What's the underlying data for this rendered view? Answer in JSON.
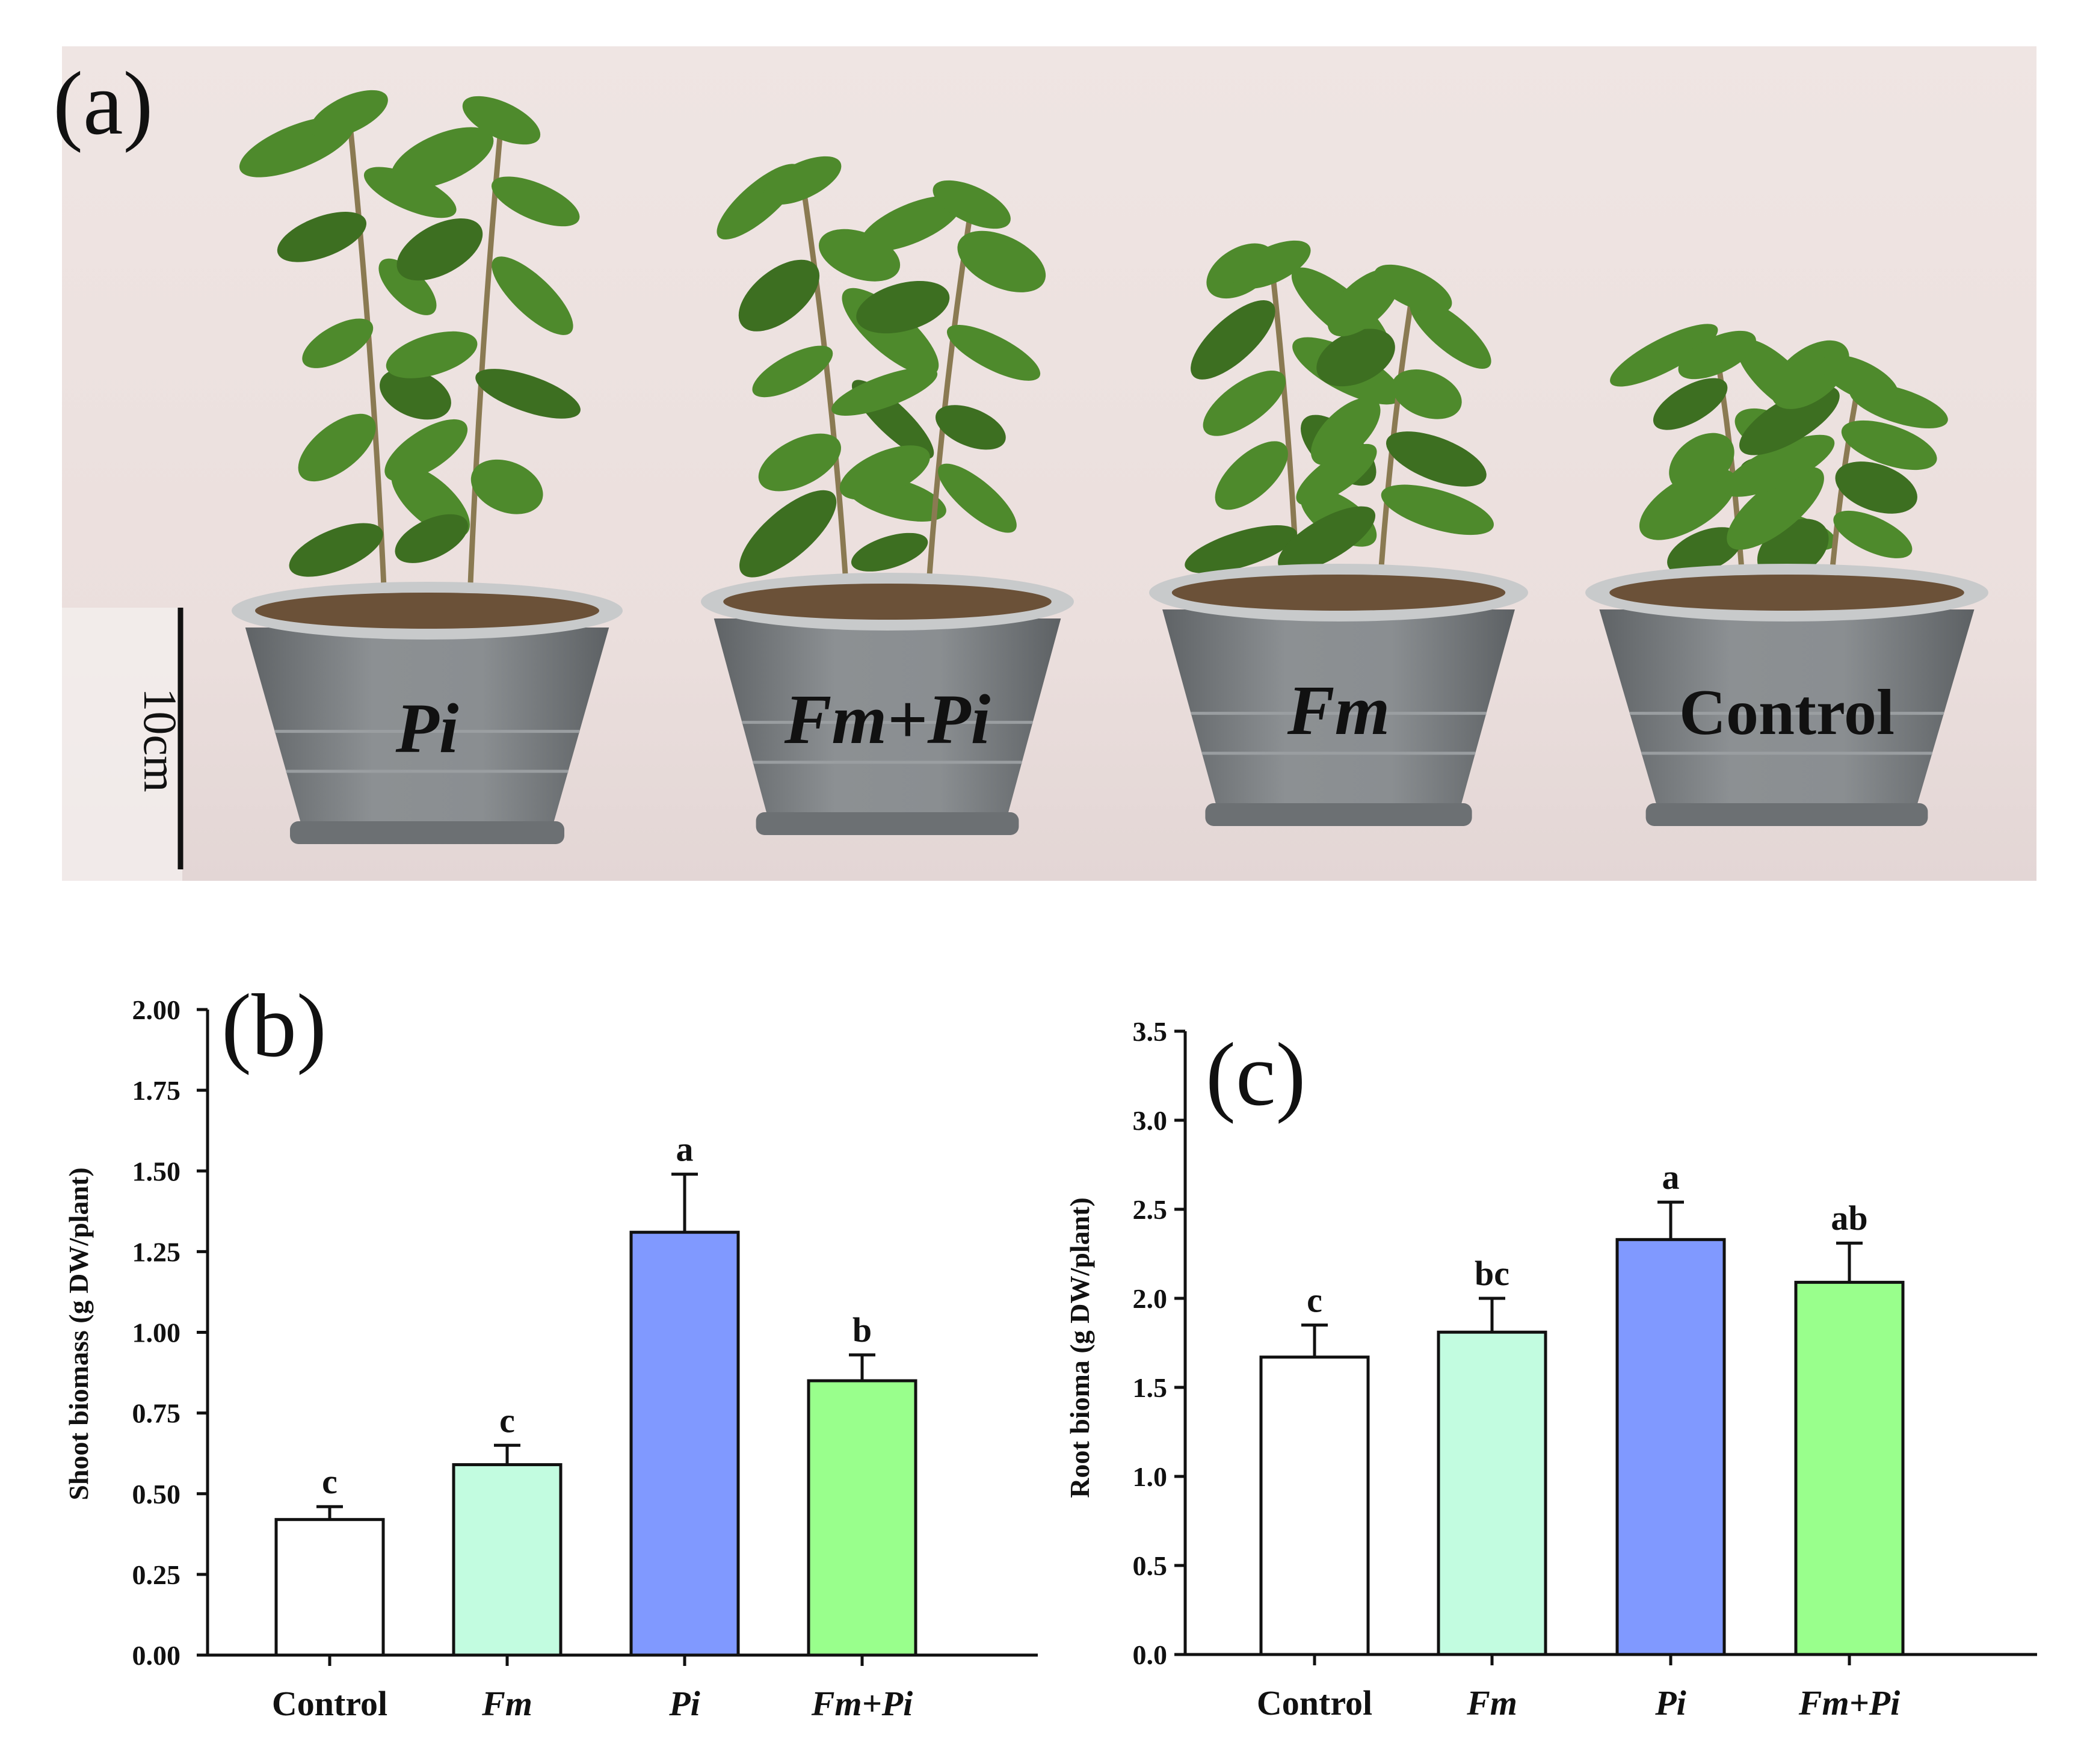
{
  "figure": {
    "panel_a": {
      "label": "(a)",
      "scale_bar_label": "10cm",
      "pot_labels": [
        "Pi",
        "Fm+Pi",
        "Fm",
        "Control"
      ]
    }
  },
  "colors": {
    "photo_bg": "#ece1df",
    "photo_floor": "#e7d9d8",
    "pot_body": "#7e8285",
    "pot_rim": "#c8cacb",
    "soil": "#6b5138",
    "leaf": "#4e8a2c",
    "leaf_dark": "#3d6f21",
    "stem": "#8a7a52",
    "control_bar": "#ffffff",
    "fm_bar": "#c2fce0",
    "pi_bar": "#8099ff",
    "fmpi_bar": "#99ff8c"
  },
  "chart_data": [
    {
      "panel": "(b)",
      "type": "bar",
      "categories": [
        "Control",
        "Fm",
        "Pi",
        "Fm+Pi"
      ],
      "values": [
        0.42,
        0.59,
        1.31,
        0.85
      ],
      "errors": [
        0.04,
        0.06,
        0.18,
        0.08
      ],
      "significance": [
        "c",
        "c",
        "a",
        "b"
      ],
      "bar_colors": [
        "#ffffff",
        "#c2fce0",
        "#8099ff",
        "#99ff8c"
      ],
      "ylabel": "Shoot biomass (g DW/plant)",
      "xlabel": "",
      "ylim": [
        0,
        2.0
      ],
      "yticks": [
        0,
        0.25,
        0.5,
        0.75,
        1.0,
        1.25,
        1.5,
        1.75,
        2.0
      ],
      "ytick_labels": [
        "0.00",
        "0.25",
        "0.50",
        "0.75",
        "1.00",
        "1.25",
        "1.50",
        "1.75",
        "2.00"
      ]
    },
    {
      "panel": "(c)",
      "type": "bar",
      "categories": [
        "Control",
        "Fm",
        "Pi",
        "Fm+Pi"
      ],
      "values": [
        1.67,
        1.81,
        2.33,
        2.09
      ],
      "errors": [
        0.18,
        0.19,
        0.21,
        0.22
      ],
      "significance": [
        "c",
        "bc",
        "a",
        "ab"
      ],
      "bar_colors": [
        "#ffffff",
        "#c2fce0",
        "#8099ff",
        "#99ff8c"
      ],
      "ylabel": "Root bioma (g DW/plant)",
      "xlabel": "",
      "ylim": [
        0,
        3.5
      ],
      "yticks": [
        0,
        0.5,
        1.0,
        1.5,
        2.0,
        2.5,
        3.0,
        3.5
      ],
      "ytick_labels": [
        "0.0",
        "0.5",
        "1.0",
        "1.5",
        "2.0",
        "2.5",
        "3.0",
        "3.5"
      ]
    }
  ]
}
